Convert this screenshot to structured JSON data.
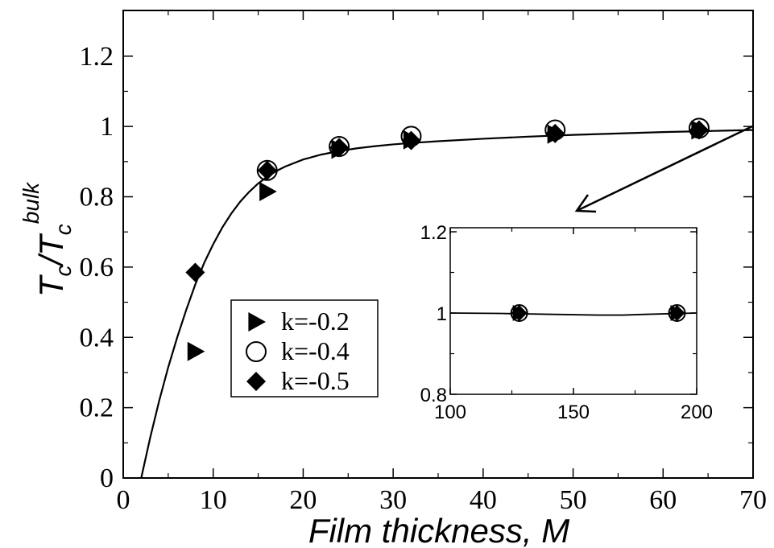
{
  "chart_data": [
    {
      "type": "scatter",
      "xlabel": "Film thickness, M",
      "ylabel": {
        "base": "T",
        "base_sub": "c",
        "sep": "/T",
        "sep_sub": "c",
        "sup": "bulk"
      },
      "xlim": [
        0,
        70
      ],
      "ylim": [
        0,
        1.33
      ],
      "xticks": [
        0,
        10,
        20,
        30,
        40,
        50,
        60,
        70
      ],
      "yticks": [
        0,
        0.2,
        0.4,
        0.6,
        0.8,
        1,
        1.2
      ],
      "xtick_labels": [
        "0",
        "10",
        "20",
        "30",
        "40",
        "50",
        "60",
        "70"
      ],
      "ytick_labels": [
        "0",
        "0.2",
        "0.4",
        "0.6",
        "0.8",
        "1",
        "1.2"
      ],
      "grid": false,
      "legend_position": "lower-left",
      "series": [
        {
          "name": "k=-0.2",
          "marker": "triangle-right",
          "x": [
            8,
            16,
            24,
            32,
            48,
            64
          ],
          "y": [
            0.36,
            0.815,
            0.935,
            0.962,
            0.978,
            0.99
          ]
        },
        {
          "name": "k=-0.4",
          "marker": "circle-open",
          "x": [
            16,
            24,
            32,
            48,
            64
          ],
          "y": [
            0.875,
            0.943,
            0.972,
            0.99,
            0.995
          ]
        },
        {
          "name": "k=-0.5",
          "marker": "diamond",
          "x": [
            8,
            16,
            24,
            32,
            48,
            64
          ],
          "y": [
            0.585,
            0.875,
            0.94,
            0.96,
            0.98,
            0.99
          ]
        }
      ],
      "fit_curve": {
        "type": "line",
        "x": [
          2,
          3,
          4,
          5,
          6,
          7,
          8,
          9,
          10,
          11,
          12,
          13,
          14,
          15,
          16,
          17,
          18,
          20,
          22,
          24,
          26,
          28,
          30,
          32,
          35,
          40,
          45,
          50,
          55,
          60,
          65,
          70
        ],
        "y": [
          0,
          0.115,
          0.22,
          0.315,
          0.4,
          0.478,
          0.55,
          0.612,
          0.665,
          0.712,
          0.752,
          0.786,
          0.814,
          0.838,
          0.857,
          0.873,
          0.886,
          0.906,
          0.92,
          0.93,
          0.938,
          0.944,
          0.949,
          0.953,
          0.958,
          0.965,
          0.971,
          0.976,
          0.98,
          0.984,
          0.987,
          0.99
        ]
      }
    },
    {
      "type": "scatter",
      "role": "inset",
      "xlim": [
        100,
        200
      ],
      "ylim": [
        0.8,
        1.21
      ],
      "xticks": [
        100,
        150,
        200
      ],
      "yticks": [
        0.8,
        1,
        1.2
      ],
      "xtick_labels": [
        "100",
        "150",
        "200"
      ],
      "ytick_labels": [
        "0.8",
        "1",
        "1.2"
      ],
      "series": [
        {
          "name": "k=-0.2",
          "marker": "triangle-right",
          "x": [
            128,
            192
          ],
          "y": [
            1.0,
            1.0
          ]
        },
        {
          "name": "k=-0.4",
          "marker": "circle-open",
          "x": [
            128,
            192
          ],
          "y": [
            1.0,
            1.0
          ]
        },
        {
          "name": "k=-0.5",
          "marker": "diamond",
          "x": [
            128,
            192
          ],
          "y": [
            1.0,
            1.0
          ]
        }
      ],
      "fit_curve": {
        "type": "line",
        "x": [
          100,
          120,
          140,
          160,
          170,
          180,
          200
        ],
        "y": [
          1.0,
          0.999,
          0.997,
          0.995,
          0.995,
          0.997,
          1.0
        ]
      }
    }
  ]
}
